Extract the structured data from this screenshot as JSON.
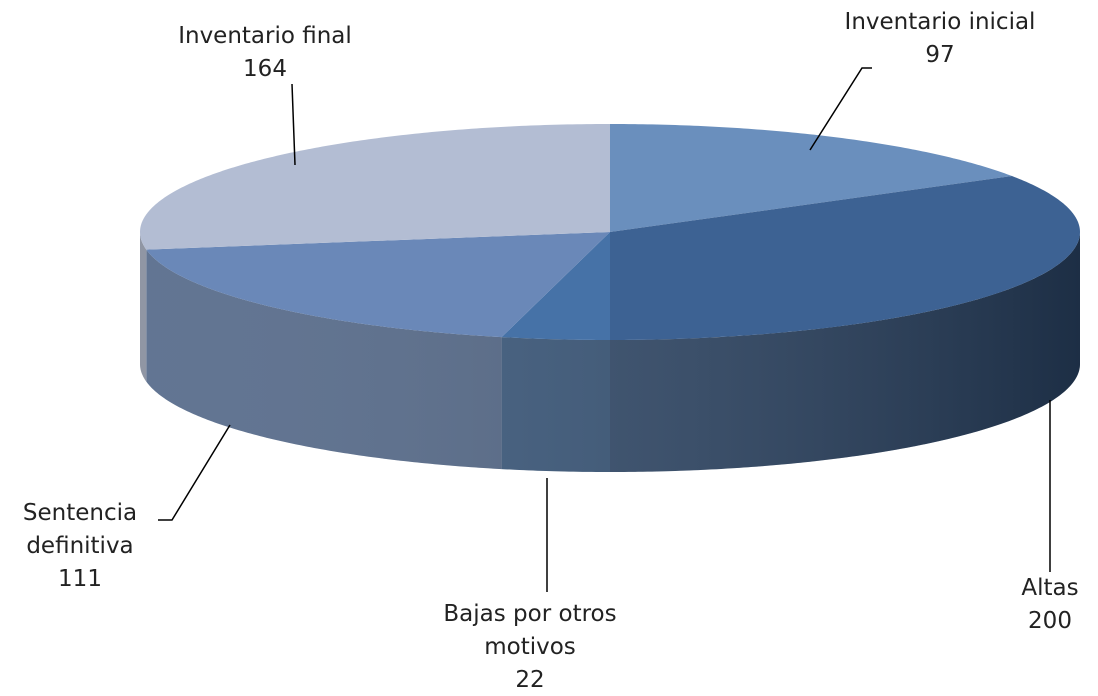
{
  "chart_data": {
    "type": "pie3d",
    "categories": [
      "Inventario inicial",
      "Altas",
      "Bajas por otros motivos",
      "Sentencia definitiva",
      "Inventario final"
    ],
    "values": [
      97,
      200,
      22,
      111,
      164
    ],
    "colors": [
      "#6a8fbd",
      "#3d6293",
      "#4672a7",
      "#6a88b8",
      "#b3bdd3"
    ]
  }
}
